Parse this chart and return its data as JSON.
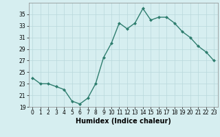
{
  "x": [
    0,
    1,
    2,
    3,
    4,
    5,
    6,
    7,
    8,
    9,
    10,
    11,
    12,
    13,
    14,
    15,
    16,
    17,
    18,
    19,
    20,
    21,
    22,
    23
  ],
  "y": [
    24,
    23,
    23,
    22.5,
    22,
    20,
    19.5,
    20.5,
    23,
    27.5,
    30,
    33.5,
    32.5,
    33.5,
    36,
    34,
    34.5,
    34.5,
    33.5,
    32,
    31,
    29.5,
    28.5,
    27
  ],
  "xlabel": "Humidex (Indice chaleur)",
  "ylim": [
    19,
    37
  ],
  "xlim": [
    -0.5,
    23.5
  ],
  "yticks": [
    19,
    21,
    23,
    25,
    27,
    29,
    31,
    33,
    35
  ],
  "xticks": [
    0,
    1,
    2,
    3,
    4,
    5,
    6,
    7,
    8,
    9,
    10,
    11,
    12,
    13,
    14,
    15,
    16,
    17,
    18,
    19,
    20,
    21,
    22,
    23
  ],
  "line_color": "#2e7d6e",
  "marker": "D",
  "marker_size": 2,
  "bg_color": "#d6eef0",
  "grid_color": "#b8d8db",
  "line_width": 1.0
}
